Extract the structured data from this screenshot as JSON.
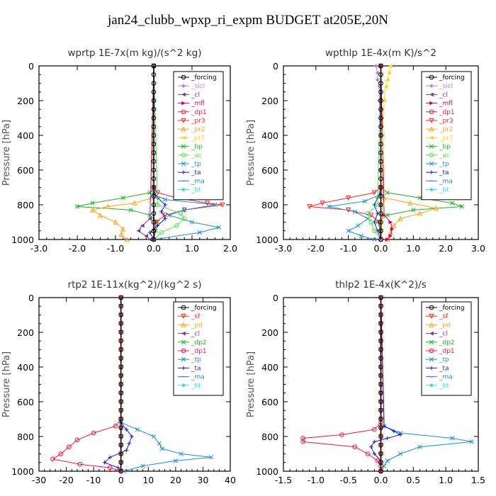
{
  "page": {
    "title": "jan24_clubb_wpxp_ri_expm  BUDGET at205E,20N"
  },
  "legend_styles": {
    "_forcing": {
      "color": "#000000",
      "marker": "circle-open"
    },
    "_sicl": {
      "color": "#b97fd0",
      "marker": "diamond"
    },
    "_cl": {
      "color": "#7a2fa0",
      "marker": "triangle-left"
    },
    "_mfl": {
      "color": "#c8006e",
      "marker": "triangle-right"
    },
    "_dp1": {
      "color": "#e8174a",
      "marker": "circle-open"
    },
    "_pr3": {
      "color": "#ff2020",
      "marker": "triangle-down"
    },
    "_pr2": {
      "color": "#ff9f1a",
      "marker": "triangle-up"
    },
    "_pr1": {
      "color": "#ffd21a",
      "marker": "triangle-left"
    },
    "_bp": {
      "color": "#20b020",
      "marker": "x"
    },
    "_ac": {
      "color": "#55e055",
      "marker": "circle-open"
    },
    "_tp": {
      "color": "#1a8fd0",
      "marker": "x"
    },
    "_ta": {
      "color": "#1f1fc0",
      "marker": "plus"
    },
    "_ma": {
      "color": "#2f7fc8",
      "marker": "dash"
    },
    "_bt": {
      "color": "#2fd8e8",
      "marker": "diamond"
    },
    "_sf": {
      "color": "#ff2020",
      "marker": "triangle-down"
    },
    "_pd": {
      "color": "#ff9f1a",
      "marker": "triangle-up"
    },
    "_dp2": {
      "color": "#20b020",
      "marker": "x"
    }
  },
  "chart_data": [
    {
      "type": "line",
      "title": "wprtp   1E-7x(m kg)/(s^2 kg)",
      "ylabel": "Pressure [hPa]",
      "xlim": [
        -3.0,
        2.0
      ],
      "ylim": [
        1000,
        0
      ],
      "xticks": [
        "-3.0",
        "-2.0",
        "-1.0",
        "0.0",
        "1.0",
        "2.0"
      ],
      "yticks": [
        "0",
        "200",
        "400",
        "600",
        "800",
        "1000"
      ],
      "legend": [
        "_forcing",
        "_sicl",
        "_cl",
        "_mfl",
        "_dp1",
        "_pr3",
        "_pr2",
        "_pr1",
        "_bp",
        "_ac",
        "_tp",
        "_ta",
        "_ma",
        "_bt"
      ],
      "series": [
        {
          "name": "_bp",
          "p": [
            0,
            700,
            730,
            760,
            790,
            810,
            830,
            860,
            900,
            950,
            1000
          ],
          "v": [
            0,
            0,
            -0.1,
            -0.8,
            -1.6,
            -2.0,
            -0.6,
            -0.1,
            0.1,
            0.05,
            0
          ]
        },
        {
          "name": "_pr2",
          "p": [
            0,
            760,
            790,
            810,
            830,
            860,
            900,
            940,
            970,
            1000
          ],
          "v": [
            0,
            -0.05,
            -0.5,
            -1.2,
            -1.6,
            -1.4,
            -1.0,
            -0.8,
            -0.85,
            -0.7
          ]
        },
        {
          "name": "_pr3",
          "p": [
            0,
            700,
            730,
            760,
            790,
            800,
            830,
            860,
            900,
            1000
          ],
          "v": [
            0,
            0,
            0.1,
            0.6,
            1.4,
            1.8,
            0.8,
            0.3,
            0.05,
            0
          ]
        },
        {
          "name": "_tp",
          "p": [
            0,
            740,
            770,
            800,
            830,
            860,
            900,
            930,
            960,
            1000
          ],
          "v": [
            0,
            0,
            0.3,
            1.6,
            0.8,
            0.4,
            1.0,
            1.7,
            1.2,
            0
          ]
        },
        {
          "name": "_ta",
          "p": [
            0,
            720,
            760,
            800,
            840,
            880,
            920,
            960,
            1000
          ],
          "v": [
            0,
            0,
            0.1,
            0.3,
            0.2,
            0.3,
            0.1,
            -0.1,
            0
          ]
        },
        {
          "name": "_ac",
          "p": [
            0,
            800,
            850,
            880,
            920,
            960,
            1000
          ],
          "v": [
            0,
            0.1,
            0.7,
            0.8,
            0.6,
            0.2,
            0
          ]
        },
        {
          "name": "_cl",
          "p": [
            0,
            880,
            920,
            950,
            980,
            1000
          ],
          "v": [
            0,
            -0.1,
            -0.3,
            -0.4,
            -0.2,
            -0.1
          ]
        },
        {
          "name": "_forcing",
          "p": [
            0,
            50,
            100,
            150,
            200,
            250,
            300,
            350,
            400,
            450,
            500,
            550,
            600,
            650,
            700,
            750,
            800,
            850,
            900,
            950,
            1000
          ],
          "v": [
            0,
            0,
            0,
            0,
            0,
            0,
            0,
            0,
            0,
            0,
            0,
            0,
            0,
            0,
            0,
            0,
            0,
            0,
            0,
            0,
            0
          ]
        }
      ]
    },
    {
      "type": "line",
      "title": "wpthlp   1E-4x(m K)/s^2",
      "ylabel": "Pressure [hPa]",
      "xlim": [
        -3.0,
        3.0
      ],
      "ylim": [
        1000,
        0
      ],
      "xticks": [
        "-3.0",
        "-2.0",
        "-1.0",
        "0.0",
        "1.0",
        "2.0",
        "3.0"
      ],
      "yticks": [
        "0",
        "200",
        "400",
        "600",
        "800",
        "1000"
      ],
      "legend": [
        "_forcing",
        "_sicl",
        "_cl",
        "_mfl",
        "_dp1",
        "_pr3",
        "_pr2",
        "_pr1",
        "_bp",
        "_ac",
        "_tp",
        "_ta",
        "_ma",
        "_bt"
      ],
      "series": [
        {
          "name": "_bp",
          "p": [
            0,
            700,
            730,
            760,
            790,
            810,
            830,
            860,
            900,
            950,
            1000
          ],
          "v": [
            0,
            0,
            0.2,
            1.2,
            2.2,
            2.5,
            1.0,
            0.2,
            -0.1,
            0,
            0
          ]
        },
        {
          "name": "_pr3",
          "p": [
            0,
            700,
            730,
            760,
            790,
            810,
            830,
            860,
            900,
            1000
          ],
          "v": [
            0,
            0,
            -0.2,
            -1.0,
            -1.8,
            -2.2,
            -1.0,
            -0.3,
            -0.05,
            0
          ]
        },
        {
          "name": "_pr2",
          "p": [
            0,
            760,
            790,
            820,
            850,
            880,
            920,
            960,
            1000
          ],
          "v": [
            0,
            0.1,
            0.9,
            1.7,
            1.2,
            0.6,
            0.4,
            0.3,
            0.2
          ]
        },
        {
          "name": "_tp",
          "p": [
            0,
            740,
            780,
            810,
            840,
            880,
            920,
            950,
            980,
            1000
          ],
          "v": [
            0,
            0,
            -0.5,
            -1.6,
            -0.8,
            -0.4,
            -0.7,
            -1.0,
            -0.6,
            -0.2
          ]
        },
        {
          "name": "_ta",
          "p": [
            0,
            720,
            760,
            800,
            850,
            900,
            950,
            1000
          ],
          "v": [
            0,
            0,
            -0.1,
            -0.2,
            -0.1,
            -0.2,
            -0.1,
            0
          ]
        },
        {
          "name": "_ac",
          "p": [
            0,
            800,
            850,
            900,
            950,
            1000
          ],
          "v": [
            0,
            -0.1,
            -0.4,
            -0.3,
            -0.2,
            0
          ]
        },
        {
          "name": "_mfl",
          "p": [
            0,
            860,
            900,
            940,
            980,
            1000
          ],
          "v": [
            0,
            0.1,
            0.3,
            0.35,
            0.3,
            0.2
          ]
        },
        {
          "name": "_pr1",
          "p": [
            0,
            40,
            80,
            120,
            200,
            400,
            600,
            800,
            1000
          ],
          "v": [
            0.3,
            0.25,
            0.2,
            0.15,
            0.1,
            0.05,
            0.05,
            0.05,
            0
          ]
        },
        {
          "name": "_sicl",
          "p": [
            0,
            40,
            80,
            120,
            200,
            400,
            600,
            800,
            1000
          ],
          "v": [
            -0.15,
            -0.1,
            -0.1,
            -0.05,
            -0.05,
            0,
            0,
            0,
            0
          ]
        },
        {
          "name": "_forcing",
          "p": [
            0,
            50,
            100,
            150,
            200,
            250,
            300,
            350,
            400,
            450,
            500,
            550,
            600,
            650,
            700,
            750,
            800,
            850,
            900,
            950,
            1000
          ],
          "v": [
            0,
            0,
            0,
            0,
            0,
            0,
            0,
            0,
            0,
            0,
            0,
            0,
            0,
            0,
            0,
            0,
            0,
            0,
            0,
            0,
            0
          ]
        }
      ]
    },
    {
      "type": "line",
      "title": "rtp2   1E-11x(kg^2)/(kg^2 s)",
      "ylabel": "Pressure [hPa]",
      "xlim": [
        -30,
        40
      ],
      "ylim": [
        1000,
        0
      ],
      "xticks": [
        "-30",
        "-20",
        "-10",
        "0",
        "10",
        "20",
        "30",
        "40"
      ],
      "yticks": [
        "0",
        "200",
        "400",
        "600",
        "800",
        "1000"
      ],
      "legend": [
        "_forcing",
        "_sf",
        "_pd",
        "_cl",
        "_dp2",
        "_dp1",
        "_tp",
        "_ta",
        "_ma",
        "_bt"
      ],
      "series": [
        {
          "name": "_dp1",
          "p": [
            0,
            700,
            740,
            780,
            820,
            860,
            900,
            930,
            960,
            980,
            1000
          ],
          "v": [
            0,
            0,
            -2,
            -10,
            -16,
            -19,
            -22,
            -25,
            -15,
            -4,
            0
          ]
        },
        {
          "name": "_tp",
          "p": [
            0,
            720,
            760,
            800,
            840,
            870,
            900,
            920,
            940,
            970,
            1000
          ],
          "v": [
            0,
            0,
            6,
            12,
            14,
            15,
            22,
            33,
            20,
            8,
            1
          ]
        },
        {
          "name": "_ta",
          "p": [
            0,
            720,
            760,
            800,
            840,
            880,
            920,
            950,
            980,
            1000
          ],
          "v": [
            0,
            0,
            2,
            4,
            3,
            2,
            -4,
            -6,
            -1,
            0
          ]
        },
        {
          "name": "_sf",
          "p": [
            0,
            50,
            100,
            150,
            200,
            250,
            300,
            350,
            400,
            450,
            500,
            550,
            600,
            650,
            700,
            750,
            800,
            850,
            900,
            950,
            1000
          ],
          "v": [
            0,
            0,
            0,
            0,
            0,
            0,
            0,
            0,
            0,
            0,
            0,
            0,
            0,
            0,
            0,
            0,
            0,
            0,
            0,
            0,
            0
          ]
        },
        {
          "name": "_forcing",
          "p": [
            0,
            50,
            100,
            150,
            200,
            250,
            300,
            350,
            400,
            450,
            500,
            550,
            600,
            650,
            700,
            750,
            800,
            850,
            900,
            950,
            1000
          ],
          "v": [
            0,
            0,
            0,
            0,
            0,
            0,
            0,
            0,
            0,
            0,
            0,
            0,
            0,
            0,
            0,
            0,
            0,
            0,
            0,
            0,
            0
          ]
        }
      ]
    },
    {
      "type": "line",
      "title": "thlp2   1E-4x(K^2)/s",
      "ylabel": "Pressure [hPa]",
      "xlim": [
        -1.5,
        1.5
      ],
      "ylim": [
        1000,
        0
      ],
      "xticks": [
        "-1.5",
        "-1.0",
        "-0.5",
        "0.0",
        "0.5",
        "1.0",
        "1.5"
      ],
      "yticks": [
        "0",
        "200",
        "400",
        "600",
        "800",
        "1000"
      ],
      "legend": [
        "_forcing",
        "_sf",
        "_pd",
        "_cl",
        "_dp2",
        "_dp1",
        "_tp",
        "_ta",
        "_ma",
        "_bt"
      ],
      "series": [
        {
          "name": "_dp1",
          "p": [
            0,
            720,
            760,
            790,
            810,
            830,
            860,
            900,
            940,
            970,
            1000
          ],
          "v": [
            0,
            0,
            -0.1,
            -0.6,
            -1.2,
            -1.2,
            -0.4,
            -0.2,
            -0.05,
            0,
            0
          ]
        },
        {
          "name": "_tp",
          "p": [
            0,
            740,
            780,
            810,
            830,
            860,
            900,
            940,
            970,
            1000
          ],
          "v": [
            0,
            0.05,
            0.3,
            1.1,
            1.4,
            0.6,
            0.3,
            0.1,
            0.05,
            0
          ]
        },
        {
          "name": "_ta",
          "p": [
            0,
            740,
            770,
            790,
            810,
            830,
            860,
            900,
            940,
            1000
          ],
          "v": [
            0,
            0.05,
            0.2,
            0.3,
            0.1,
            -0.1,
            -0.15,
            -0.1,
            0,
            0
          ]
        },
        {
          "name": "_sf",
          "p": [
            0,
            50,
            100,
            150,
            200,
            250,
            300,
            350,
            400,
            450,
            500,
            550,
            600,
            650,
            700,
            750,
            800,
            850,
            900,
            950,
            1000
          ],
          "v": [
            0,
            0,
            0,
            0,
            0,
            0,
            0,
            0,
            0,
            0,
            0,
            0,
            0,
            0,
            0,
            0,
            0,
            0,
            0,
            0,
            0
          ]
        },
        {
          "name": "_forcing",
          "p": [
            0,
            50,
            100,
            150,
            200,
            250,
            300,
            350,
            400,
            450,
            500,
            550,
            600,
            650,
            700,
            750,
            800,
            850,
            900,
            950,
            1000
          ],
          "v": [
            0,
            0,
            0,
            0,
            0,
            0,
            0,
            0,
            0,
            0,
            0,
            0,
            0,
            0,
            0,
            0,
            0,
            0,
            0,
            0,
            0
          ]
        }
      ]
    }
  ]
}
